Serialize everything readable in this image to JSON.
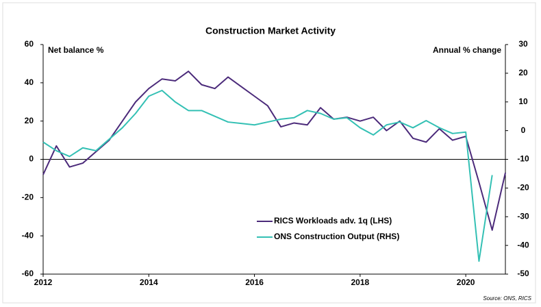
{
  "chart_data": {
    "type": "line",
    "title": "Construction Market Activity",
    "y_label": "Net balance %",
    "y2_label": "Annual % change",
    "source": "Source: ONS, RICS",
    "x": [
      2012,
      2012.25,
      2012.5,
      2012.75,
      2013,
      2013.25,
      2013.5,
      2013.75,
      2014,
      2014.25,
      2014.5,
      2014.75,
      2015,
      2015.25,
      2015.5,
      2015.75,
      2016,
      2016.25,
      2016.5,
      2016.75,
      2017,
      2017.25,
      2017.5,
      2017.75,
      2018,
      2018.25,
      2018.5,
      2018.75,
      2019,
      2019.25,
      2019.5,
      2019.75,
      2020,
      2020.25,
      2020.5,
      2020.75
    ],
    "xlim": [
      2012,
      2020.75
    ],
    "xticks": [
      2012,
      2014,
      2016,
      2018,
      2020
    ],
    "ylim": [
      -60,
      60
    ],
    "yticks": [
      60,
      40,
      20,
      0,
      -20,
      -40,
      -60
    ],
    "y2lim": [
      -50,
      30
    ],
    "y2ticks": [
      30,
      20,
      10,
      0,
      -10,
      -20,
      -30,
      -40,
      -50
    ],
    "series": [
      {
        "name": "RICS Workloads adv. 1q (LHS)",
        "color": "#4b2a7a",
        "values": [
          -8,
          7,
          -4,
          -2,
          4,
          10,
          20,
          30,
          37,
          42,
          41,
          46,
          39,
          37,
          43,
          38,
          33,
          28,
          17,
          19,
          18,
          27,
          21,
          22,
          20,
          22,
          15,
          20,
          11,
          9,
          16,
          10,
          12,
          -12,
          -37,
          -7
        ]
      },
      {
        "name": "ONS Construction Output (RHS)",
        "color": "#33c0b4",
        "axis": "y2",
        "values": [
          -4,
          -7,
          -9,
          -6,
          -7,
          -3,
          1,
          6,
          12,
          14,
          10,
          7,
          7,
          5,
          3,
          2.5,
          2,
          3,
          4,
          4.5,
          7,
          6,
          4,
          4.5,
          1,
          -1.5,
          2,
          3,
          1,
          3.5,
          1,
          -1,
          -0.5,
          -45.5,
          -15.5,
          null
        ]
      }
    ]
  }
}
